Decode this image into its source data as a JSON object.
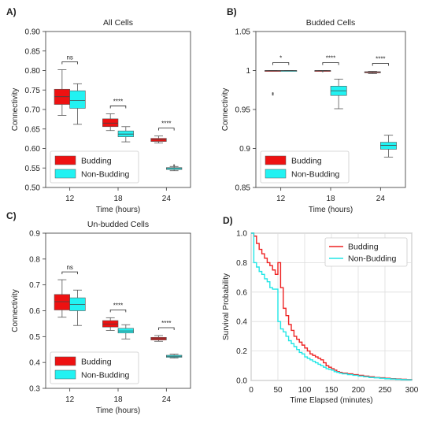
{
  "chart_data": [
    {
      "panel": "A)",
      "type": "box",
      "title": "All Cells",
      "xlabel": "Time (hours)",
      "ylabel": "Connectivity",
      "categories": [
        "12",
        "18",
        "24"
      ],
      "ylim": [
        0.5,
        0.9
      ],
      "yticks": [
        "0.50",
        "0.55",
        "0.60",
        "0.65",
        "0.70",
        "0.75",
        "0.80",
        "0.85",
        "0.90"
      ],
      "ytick_values": [
        0.5,
        0.55,
        0.6,
        0.65,
        0.7,
        0.75,
        0.8,
        0.85,
        0.9
      ],
      "series": [
        {
          "name": "Budding",
          "color": "#ee1111",
          "boxes": [
            {
              "min": 0.685,
              "q1": 0.713,
              "median": 0.733,
              "q3": 0.752,
              "max": 0.802,
              "outliers": []
            },
            {
              "min": 0.646,
              "q1": 0.656,
              "median": 0.665,
              "q3": 0.676,
              "max": 0.689,
              "outliers": []
            },
            {
              "min": 0.614,
              "q1": 0.618,
              "median": 0.622,
              "q3": 0.626,
              "max": 0.632,
              "outliers": []
            }
          ]
        },
        {
          "name": "Non-Budding",
          "color": "#22f2f2",
          "boxes": [
            {
              "min": 0.662,
              "q1": 0.703,
              "median": 0.723,
              "q3": 0.748,
              "max": 0.766,
              "outliers": []
            },
            {
              "min": 0.617,
              "q1": 0.63,
              "median": 0.637,
              "q3": 0.645,
              "max": 0.656,
              "outliers": []
            },
            {
              "min": 0.543,
              "q1": 0.546,
              "median": 0.549,
              "q3": 0.551,
              "max": 0.554,
              "outliers": [
                0.557
              ]
            }
          ]
        }
      ],
      "significance": [
        {
          "group": "12",
          "label": "ns"
        },
        {
          "group": "18",
          "label": "****"
        },
        {
          "group": "24",
          "label": "****"
        }
      ],
      "legend": "lower-left"
    },
    {
      "panel": "B)",
      "type": "box",
      "title": "Budded Cells",
      "xlabel": "Time (hours)",
      "ylabel": "Connectivity",
      "categories": [
        "12",
        "18",
        "24"
      ],
      "ylim": [
        0.85,
        1.05
      ],
      "yticks": [
        "0.85",
        "0.9",
        "0.95",
        "1",
        "1.05"
      ],
      "ytick_values": [
        0.85,
        0.9,
        0.95,
        1.0,
        1.05
      ],
      "series": [
        {
          "name": "Budding",
          "color": "#ee1111",
          "boxes": [
            {
              "min": 1.0,
              "q1": 1.0,
              "median": 1.0,
              "q3": 1.0,
              "max": 1.0,
              "outliers": [
                0.971,
                0.969
              ]
            },
            {
              "min": 1.0,
              "q1": 1.0,
              "median": 1.0,
              "q3": 1.0,
              "max": 1.0,
              "outliers": [
                0.999
              ]
            },
            {
              "min": 0.996,
              "q1": 0.997,
              "median": 0.998,
              "q3": 0.9985,
              "max": 0.999,
              "outliers": []
            }
          ]
        },
        {
          "name": "Non-Budding",
          "color": "#22f2f2",
          "boxes": [
            {
              "min": 1.0,
              "q1": 1.0,
              "median": 1.0,
              "q3": 1.0,
              "max": 1.0,
              "outliers": []
            },
            {
              "min": 0.951,
              "q1": 0.968,
              "median": 0.974,
              "q3": 0.98,
              "max": 0.989,
              "outliers": []
            },
            {
              "min": 0.889,
              "q1": 0.899,
              "median": 0.904,
              "q3": 0.908,
              "max": 0.917,
              "outliers": []
            }
          ]
        }
      ],
      "significance": [
        {
          "group": "12",
          "label": "*"
        },
        {
          "group": "18",
          "label": "****"
        },
        {
          "group": "24",
          "label": "****"
        }
      ],
      "legend": "lower-left"
    },
    {
      "panel": "C)",
      "type": "box",
      "title": "Un-budded Cells",
      "xlabel": "Time (hours)",
      "ylabel": "Connectivity",
      "categories": [
        "12",
        "18",
        "24"
      ],
      "ylim": [
        0.3,
        0.9
      ],
      "yticks": [
        "0.3",
        "0.4",
        "0.5",
        "0.6",
        "0.7",
        "0.8",
        "0.9"
      ],
      "ytick_values": [
        0.3,
        0.4,
        0.5,
        0.6,
        0.7,
        0.8,
        0.9
      ],
      "series": [
        {
          "name": "Budding",
          "color": "#ee1111",
          "boxes": [
            {
              "min": 0.575,
              "q1": 0.603,
              "median": 0.635,
              "q3": 0.663,
              "max": 0.72,
              "outliers": []
            },
            {
              "min": 0.524,
              "q1": 0.537,
              "median": 0.549,
              "q3": 0.562,
              "max": 0.573,
              "outliers": []
            },
            {
              "min": 0.482,
              "q1": 0.487,
              "median": 0.492,
              "q3": 0.497,
              "max": 0.504,
              "outliers": []
            }
          ]
        },
        {
          "name": "Non-Budding",
          "color": "#22f2f2",
          "boxes": [
            {
              "min": 0.543,
              "q1": 0.6,
              "median": 0.624,
              "q3": 0.65,
              "max": 0.68,
              "outliers": []
            },
            {
              "min": 0.491,
              "q1": 0.514,
              "median": 0.522,
              "q3": 0.532,
              "max": 0.546,
              "outliers": []
            },
            {
              "min": 0.417,
              "q1": 0.42,
              "median": 0.424,
              "q3": 0.428,
              "max": 0.432,
              "outliers": []
            }
          ]
        }
      ],
      "significance": [
        {
          "group": "12",
          "label": "ns"
        },
        {
          "group": "18",
          "label": "****"
        },
        {
          "group": "24",
          "label": "****"
        }
      ],
      "legend": "lower-left"
    },
    {
      "panel": "D)",
      "type": "line",
      "title": "",
      "xlabel": "Time Elapsed (minutes)",
      "ylabel": "Survival Probability",
      "xlim": [
        0,
        300
      ],
      "ylim": [
        0.0,
        1.0
      ],
      "xticks": [
        "0",
        "50",
        "100",
        "150",
        "200",
        "250",
        "300"
      ],
      "xtick_values": [
        0,
        50,
        100,
        150,
        200,
        250,
        300
      ],
      "yticks": [
        "0.0",
        "0.2",
        "0.4",
        "0.6",
        "0.8",
        "1.0"
      ],
      "ytick_values": [
        0.0,
        0.2,
        0.4,
        0.6,
        0.8,
        1.0
      ],
      "grid": true,
      "legend": "top-right",
      "series": [
        {
          "name": "Budding",
          "color": "#ee2222",
          "x": [
            0,
            5,
            10,
            15,
            20,
            25,
            30,
            35,
            40,
            45,
            50,
            55,
            60,
            65,
            70,
            75,
            80,
            85,
            90,
            95,
            100,
            105,
            110,
            115,
            120,
            125,
            130,
            135,
            140,
            145,
            150,
            155,
            160,
            165,
            170,
            180,
            190,
            200,
            210,
            220,
            230,
            240,
            250,
            260,
            270,
            280,
            290,
            300
          ],
          "y": [
            1.0,
            0.98,
            0.93,
            0.89,
            0.86,
            0.83,
            0.8,
            0.78,
            0.75,
            0.72,
            0.8,
            0.63,
            0.49,
            0.44,
            0.38,
            0.34,
            0.3,
            0.28,
            0.26,
            0.24,
            0.22,
            0.2,
            0.18,
            0.17,
            0.16,
            0.15,
            0.14,
            0.12,
            0.1,
            0.09,
            0.08,
            0.07,
            0.06,
            0.055,
            0.05,
            0.045,
            0.04,
            0.035,
            0.03,
            0.025,
            0.02,
            0.018,
            0.015,
            0.012,
            0.01,
            0.008,
            0.006,
            0.005
          ]
        },
        {
          "name": "Non-Budding",
          "color": "#22e6e6",
          "x": [
            0,
            5,
            10,
            15,
            20,
            25,
            30,
            35,
            40,
            45,
            50,
            55,
            60,
            65,
            70,
            75,
            80,
            85,
            90,
            95,
            100,
            105,
            110,
            115,
            120,
            125,
            130,
            135,
            140,
            145,
            150,
            155,
            160,
            165,
            170,
            180,
            190,
            200,
            210,
            220,
            230,
            240,
            250,
            260,
            270,
            280,
            290,
            300
          ],
          "y": [
            1.0,
            0.8,
            0.77,
            0.74,
            0.72,
            0.69,
            0.67,
            0.63,
            0.62,
            0.62,
            0.4,
            0.35,
            0.33,
            0.3,
            0.27,
            0.25,
            0.23,
            0.21,
            0.19,
            0.18,
            0.16,
            0.15,
            0.14,
            0.13,
            0.12,
            0.11,
            0.1,
            0.09,
            0.08,
            0.075,
            0.07,
            0.06,
            0.055,
            0.05,
            0.045,
            0.04,
            0.035,
            0.03,
            0.025,
            0.02,
            0.018,
            0.015,
            0.012,
            0.01,
            0.008,
            0.006,
            0.005,
            0.004
          ]
        }
      ]
    }
  ]
}
